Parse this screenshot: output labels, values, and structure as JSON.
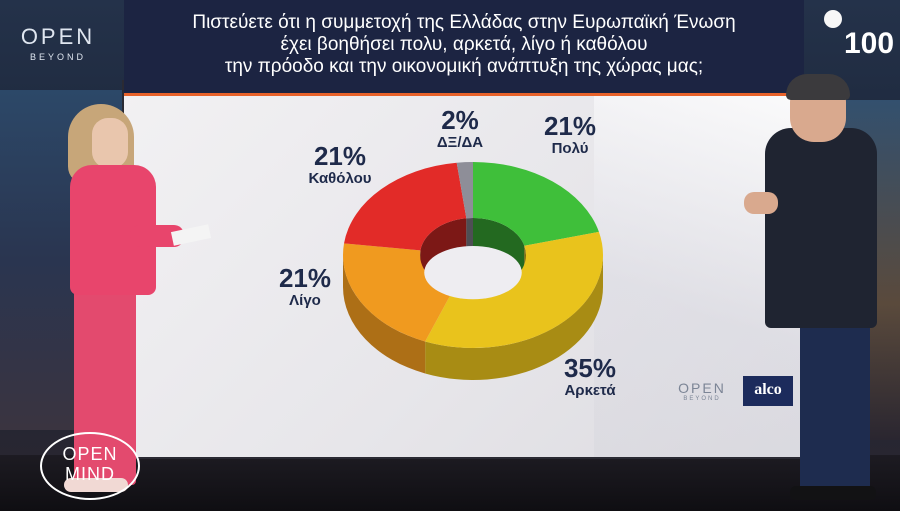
{
  "channel_logo": {
    "main": "OPEN",
    "sub": "BEYOND"
  },
  "counter": "100",
  "question": {
    "lines": [
      "Πιστεύετε ότι η συμμετοχή της Ελλάδας στην Ευρωπαϊκή Ένωση",
      "έχει βοηθήσει πολυ, αρκετά, λίγο ή καθόλου",
      "την πρόοδο και την οικονομική ανάπτυξη της χώρας μας;"
    ]
  },
  "chart_data": {
    "type": "pie",
    "style": "3d-donut",
    "slices": [
      {
        "label": "Πολύ",
        "value": 21,
        "display": "21%",
        "color": "#3fbf3a"
      },
      {
        "label": "Αρκετά",
        "value": 35,
        "display": "35%",
        "color": "#e9c31c"
      },
      {
        "label": "Λίγο",
        "value": 21,
        "display": "21%",
        "color": "#f09a1f"
      },
      {
        "label": "Καθόλου",
        "value": 21,
        "display": "21%",
        "color": "#e22b28"
      },
      {
        "label": "ΔΞ/ΔΑ",
        "value": 2,
        "display": "2%",
        "color": "#8e8e98"
      }
    ]
  },
  "wall_logos": {
    "open_main": "OPEN",
    "open_sub": "BEYOND",
    "alco": "alco"
  },
  "show_logo": {
    "line1": "OPEN",
    "line2": "MIND"
  },
  "colors": {
    "question_bg": "#1c2442",
    "accent": "#e8622a",
    "label_text": "#1e2a4a"
  }
}
